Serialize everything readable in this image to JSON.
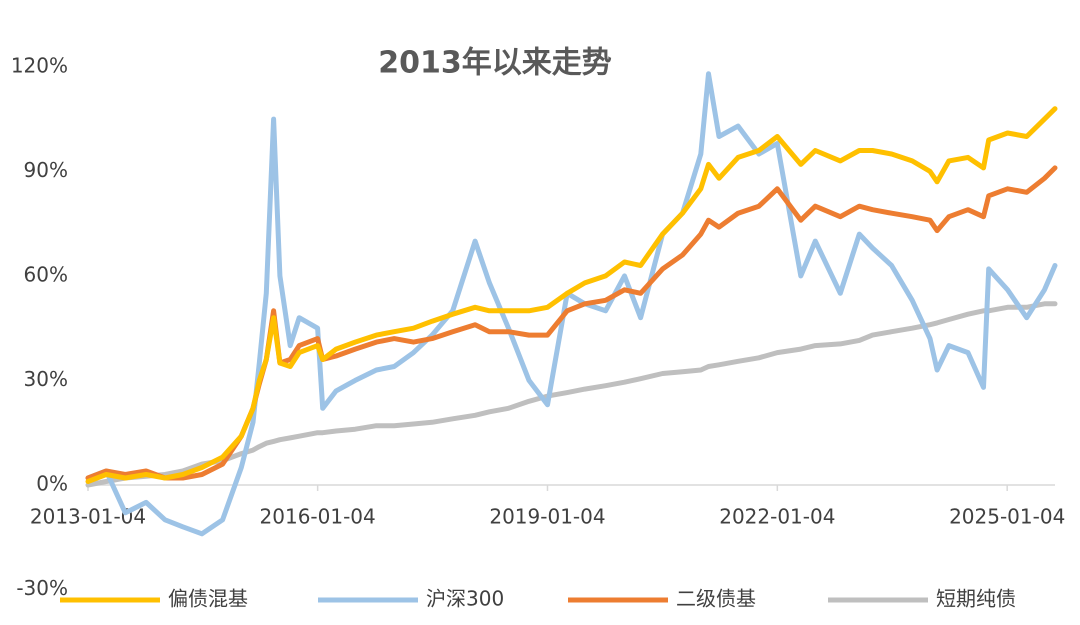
{
  "chart_data": {
    "type": "line",
    "title": "2013年以来走势",
    "x": [
      "2013-01-04",
      "2013-04-01",
      "2013-07-01",
      "2013-10-08",
      "2014-01-06",
      "2014-04-01",
      "2014-07-01",
      "2014-10-08",
      "2015-01-05",
      "2015-03-02",
      "2015-04-01",
      "2015-05-04",
      "2015-06-08",
      "2015-07-08",
      "2015-08-26",
      "2015-10-08",
      "2016-01-04",
      "2016-01-28",
      "2016-04-01",
      "2016-07-01",
      "2016-10-10",
      "2017-01-03",
      "2017-04-05",
      "2017-07-03",
      "2017-10-09",
      "2018-01-24",
      "2018-04-02",
      "2018-07-02",
      "2018-10-08",
      "2019-01-04",
      "2019-04-08",
      "2019-07-01",
      "2019-10-08",
      "2020-01-06",
      "2020-03-23",
      "2020-07-06",
      "2020-10-09",
      "2021-01-04",
      "2021-02-10",
      "2021-04-01",
      "2021-07-01",
      "2021-10-08",
      "2022-01-04",
      "2022-04-26",
      "2022-07-04",
      "2022-10-31",
      "2023-01-30",
      "2023-04-03",
      "2023-07-03",
      "2023-10-09",
      "2024-01-02",
      "2024-02-05",
      "2024-04-01",
      "2024-07-01",
      "2024-09-13",
      "2024-10-08",
      "2025-01-06",
      "2025-04-07",
      "2025-07-01",
      "2025-08-20"
    ],
    "series": [
      {
        "name": "偏债混基",
        "color": "#ffc000",
        "values": [
          1,
          3,
          2,
          3,
          2,
          3,
          5,
          8,
          14,
          22,
          30,
          36,
          48,
          35,
          34,
          38,
          40,
          36,
          39,
          41,
          43,
          44,
          45,
          47,
          49,
          51,
          50,
          50,
          50,
          51,
          55,
          58,
          60,
          64,
          63,
          72,
          78,
          85,
          92,
          88,
          94,
          96,
          100,
          92,
          96,
          93,
          96,
          96,
          95,
          93,
          90,
          87,
          93,
          94,
          91,
          99,
          101,
          100,
          105,
          108
        ]
      },
      {
        "name": "沪深300",
        "color": "#9dc3e6",
        "values": [
          2,
          4,
          -8,
          -5,
          -10,
          -12,
          -14,
          -10,
          5,
          18,
          35,
          55,
          105,
          60,
          40,
          48,
          45,
          22,
          27,
          30,
          33,
          34,
          38,
          43,
          50,
          70,
          58,
          45,
          30,
          23,
          55,
          52,
          50,
          60,
          48,
          72,
          78,
          95,
          118,
          100,
          103,
          95,
          98,
          60,
          70,
          55,
          72,
          68,
          63,
          53,
          42,
          33,
          40,
          38,
          28,
          62,
          56,
          48,
          56,
          63
        ]
      },
      {
        "name": "二级债基",
        "color": "#ed7d31",
        "values": [
          2,
          4,
          3,
          4,
          2,
          2,
          3,
          6,
          14,
          22,
          29,
          36,
          50,
          35,
          36,
          40,
          42,
          36,
          37,
          39,
          41,
          42,
          41,
          42,
          44,
          46,
          44,
          44,
          43,
          43,
          50,
          52,
          53,
          56,
          55,
          62,
          66,
          72,
          76,
          74,
          78,
          80,
          85,
          76,
          80,
          77,
          80,
          79,
          78,
          77,
          76,
          73,
          77,
          79,
          77,
          83,
          85,
          84,
          88,
          91
        ]
      },
      {
        "name": "短期纯债",
        "color": "#bfbfbf",
        "values": [
          0,
          1,
          2,
          2.5,
          3,
          4,
          6,
          7,
          9,
          10,
          11,
          12,
          12.5,
          13,
          13.5,
          14,
          15,
          15,
          15.5,
          16,
          17,
          17,
          17.5,
          18,
          19,
          20,
          21,
          22,
          24,
          25.5,
          26.5,
          27.5,
          28.5,
          29.5,
          30.5,
          32,
          32.5,
          33,
          34,
          34.5,
          35.5,
          36.5,
          38,
          39,
          40,
          40.5,
          41.5,
          43,
          44,
          45,
          46,
          46.5,
          47.5,
          49,
          50,
          50,
          51,
          51,
          52,
          52
        ]
      }
    ],
    "xlim": [
      "2013-01-04",
      "2025-08-20"
    ],
    "xticks": [
      "2013-01-04",
      "2016-01-04",
      "2019-01-04",
      "2022-01-04",
      "2025-01-04"
    ],
    "ylim": [
      -30,
      130
    ],
    "yticks": [
      {
        "value": -30,
        "label": "-30%"
      },
      {
        "value": 0,
        "label": "0%"
      },
      {
        "value": 30,
        "label": "30%"
      },
      {
        "value": 60,
        "label": "60%"
      },
      {
        "value": 90,
        "label": "90%"
      },
      {
        "value": 120,
        "label": "120%"
      }
    ],
    "grid": false,
    "legend": "bottom"
  }
}
